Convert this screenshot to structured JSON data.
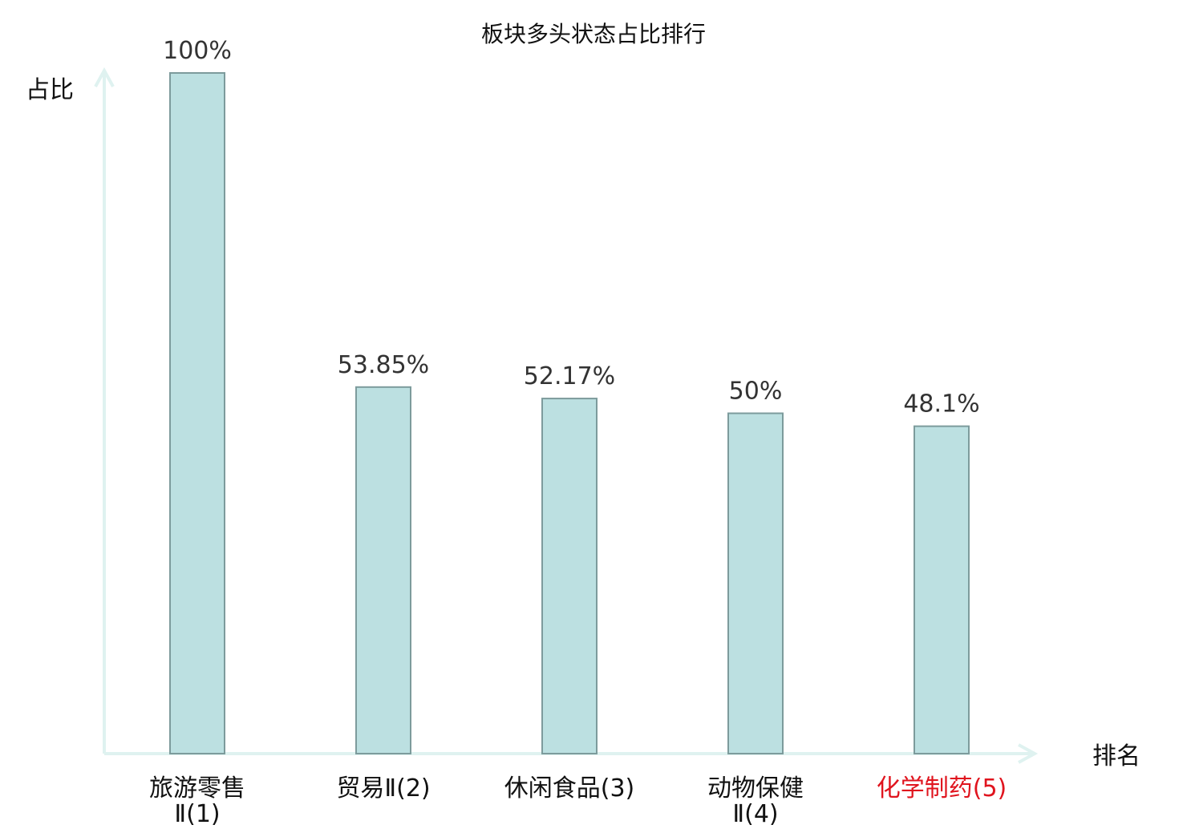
{
  "chart_data": {
    "type": "bar",
    "title": "板块多头状态占比排行",
    "ylabel": "占比",
    "xlabel": "排名",
    "ylim": [
      0,
      100
    ],
    "grid": false,
    "categories": [
      {
        "lines": [
          "旅游零售",
          "Ⅱ(1)"
        ],
        "highlight": false
      },
      {
        "lines": [
          "贸易Ⅱ(2)"
        ],
        "highlight": false
      },
      {
        "lines": [
          "休闲食品(3)"
        ],
        "highlight": false
      },
      {
        "lines": [
          "动物保健",
          "Ⅱ(4)"
        ],
        "highlight": false
      },
      {
        "lines": [
          "化学制药(5)"
        ],
        "highlight": true
      }
    ],
    "values": [
      100,
      53.85,
      52.17,
      50,
      48.1
    ],
    "value_labels": [
      "100%",
      "53.85%",
      "52.17%",
      "50%",
      "48.1%"
    ],
    "colors": {
      "bar_fill": "#bce0e1",
      "bar_stroke": "#7d9b9c",
      "axis": "#dff2f0",
      "text": "#333333",
      "highlight_text": "#e0141e"
    }
  }
}
